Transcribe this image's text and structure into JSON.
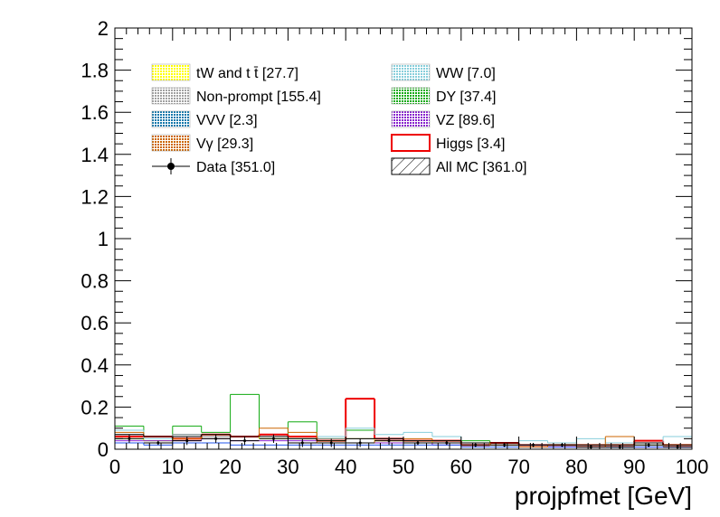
{
  "chart_data": {
    "type": "bar",
    "xlabel": "projpfmet [GeV]",
    "ylabel": "",
    "xlim": [
      0,
      100
    ],
    "ylim": [
      0,
      2
    ],
    "x_ticks": [
      "0",
      "10",
      "20",
      "30",
      "40",
      "50",
      "60",
      "70",
      "80",
      "90",
      "100"
    ],
    "y_ticks": [
      "0",
      "0.2",
      "0.4",
      "0.6",
      "0.8",
      "1",
      "1.2",
      "1.4",
      "1.6",
      "1.8",
      "2"
    ],
    "legend_position": "top",
    "legend": [
      {
        "label": "tW and t t̄ [27.7]",
        "style": "dots",
        "color": "#ffff00"
      },
      {
        "label": "WW [7.0]",
        "style": "dots",
        "color": "#87cedb"
      },
      {
        "label": "Non-prompt [155.4]",
        "style": "dots",
        "color": "#a0a0a0"
      },
      {
        "label": "DY [37.4]",
        "style": "dots",
        "color": "#11aa11"
      },
      {
        "label": "VVV [2.3]",
        "style": "dots",
        "color": "#1177aa"
      },
      {
        "label": "VZ [89.6]",
        "style": "dots",
        "color": "#8822cc"
      },
      {
        "label": "Vγ [29.3]",
        "style": "dots",
        "color": "#cc6600"
      },
      {
        "label": "Higgs [3.4]",
        "style": "box",
        "color": "#ee0000"
      },
      {
        "label": "Data [351.0]",
        "style": "marker",
        "color": "#000000"
      },
      {
        "label": "All MC [361.0]",
        "style": "hatch",
        "color": "#000000"
      }
    ],
    "bin_edges": [
      0,
      5,
      10,
      15,
      20,
      25,
      30,
      35,
      40,
      45,
      50,
      55,
      60,
      65,
      70,
      75,
      80,
      85,
      90,
      95,
      100
    ],
    "series": [
      {
        "name": "DY",
        "color": "#11aa11",
        "values": [
          0.11,
          0.04,
          0.11,
          0.08,
          0.26,
          0.07,
          0.13,
          0.05,
          0.09,
          0.05,
          0.03,
          0.04,
          0.04,
          0.02,
          0.02,
          0.02,
          0.02,
          0.01,
          0.03,
          0.02
        ]
      },
      {
        "name": "Higgs",
        "color": "#ee0000",
        "values": [
          0.06,
          0.06,
          0.05,
          0.07,
          0.06,
          0.07,
          0.06,
          0.04,
          0.24,
          0.05,
          0.04,
          0.04,
          0.02,
          0.03,
          0.02,
          0.02,
          0.02,
          0.02,
          0.04,
          0.02
        ]
      },
      {
        "name": "WW",
        "color": "#87cedb",
        "values": [
          0.09,
          0.05,
          0.07,
          0.06,
          0.06,
          0.05,
          0.05,
          0.06,
          0.1,
          0.07,
          0.08,
          0.06,
          0.03,
          0.03,
          0.04,
          0.03,
          0.05,
          0.03,
          0.03,
          0.06
        ]
      },
      {
        "name": "tW and t t̄",
        "color": "#ffff00",
        "values": [
          0.05,
          0.04,
          0.06,
          0.05,
          0.06,
          0.05,
          0.05,
          0.04,
          0.05,
          0.04,
          0.04,
          0.03,
          0.03,
          0.02,
          0.02,
          0.02,
          0.02,
          0.02,
          0.02,
          0.02
        ]
      },
      {
        "name": "Non-prompt",
        "color": "#888888",
        "values": [
          0.07,
          0.06,
          0.07,
          0.06,
          0.06,
          0.06,
          0.05,
          0.05,
          0.05,
          0.05,
          0.04,
          0.04,
          0.03,
          0.03,
          0.02,
          0.02,
          0.02,
          0.02,
          0.02,
          0.01
        ]
      },
      {
        "name": "VZ",
        "color": "#8822cc",
        "values": [
          0.04,
          0.04,
          0.04,
          0.05,
          0.04,
          0.04,
          0.04,
          0.03,
          0.03,
          0.03,
          0.03,
          0.02,
          0.02,
          0.02,
          0.02,
          0.01,
          0.01,
          0.01,
          0.01,
          0.01
        ]
      },
      {
        "name": "VVV",
        "color": "#2255ee",
        "values": [
          0.03,
          0.02,
          0.03,
          0.03,
          0.02,
          0.02,
          0.02,
          0.02,
          0.02,
          0.02,
          0.02,
          0.02,
          0.01,
          0.01,
          0.01,
          0.01,
          0.01,
          0.01,
          0.01,
          0.01
        ]
      },
      {
        "name": "Vγ",
        "color": "#cc6600",
        "values": [
          0.08,
          0.06,
          0.05,
          0.07,
          0.06,
          0.1,
          0.08,
          0.03,
          0.03,
          0.04,
          0.05,
          0.04,
          0.02,
          0.02,
          0.01,
          0.02,
          0.01,
          0.06,
          0.03,
          0.02
        ]
      },
      {
        "name": "All MC",
        "color": "#000000",
        "values": [
          0.07,
          0.06,
          0.06,
          0.07,
          0.06,
          0.06,
          0.05,
          0.04,
          0.05,
          0.05,
          0.04,
          0.04,
          0.03,
          0.03,
          0.02,
          0.02,
          0.02,
          0.02,
          0.03,
          0.02
        ]
      },
      {
        "name": "Data",
        "color": "#000000",
        "values": [
          0.05,
          0.03,
          0.04,
          0.05,
          0.04,
          0.05,
          0.03,
          0.03,
          0.03,
          0.04,
          0.03,
          0.03,
          0.02,
          0.02,
          0.02,
          0.02,
          0.01,
          0.01,
          0.02,
          0.01
        ],
        "errors": [
          0.02,
          0.01,
          0.02,
          0.02,
          0.02,
          0.02,
          0.02,
          0.02,
          0.02,
          0.02,
          0.01,
          0.01,
          0.01,
          0.01,
          0.01,
          0.01,
          0.01,
          0.01,
          0.01,
          0.01
        ]
      }
    ]
  }
}
